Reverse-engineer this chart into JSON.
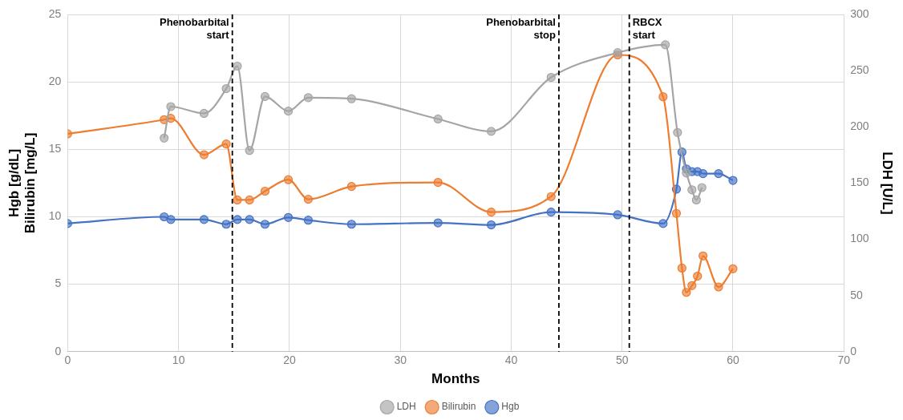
{
  "chart_data": {
    "type": "line",
    "xlabel": "Months",
    "ylabel": "Hgb [g/dL]\nBilirubin [mg/L]",
    "y2label": "LDH [U/L]",
    "xlim": [
      0,
      70
    ],
    "xticks": [
      0,
      10,
      20,
      30,
      40,
      50,
      60,
      70
    ],
    "ylim": [
      0,
      25
    ],
    "yticks": [
      0,
      5,
      10,
      15,
      20,
      25
    ],
    "y2lim": [
      0,
      300
    ],
    "y2ticks": [
      0,
      50,
      100,
      150,
      200,
      250,
      300
    ],
    "grid": true,
    "legend": "bottom",
    "marker": "circle",
    "line_style": "solid",
    "series": [
      {
        "name": "Hgb",
        "color": "#4472c4",
        "x": [
          0,
          8.7,
          9.3,
          12.3,
          14.3,
          15.3,
          16.4,
          17.8,
          19.9,
          21.7,
          25.6,
          33.4,
          38.2,
          43.6,
          49.6,
          53.7,
          54.9,
          55.4,
          55.8,
          56.3,
          56.8,
          57.3,
          58.7,
          60.0
        ],
        "values": [
          9.5,
          10.0,
          9.8,
          9.8,
          9.45,
          9.8,
          9.8,
          9.45,
          9.95,
          9.75,
          9.45,
          9.55,
          9.4,
          10.35,
          10.15,
          9.5,
          12.05,
          14.8,
          13.55,
          13.35,
          13.35,
          13.2,
          13.2,
          12.7
        ]
      },
      {
        "name": "Bilirubin",
        "color": "#ed7d31",
        "x": [
          0,
          8.7,
          9.3,
          12.3,
          14.3,
          15.3,
          16.4,
          17.8,
          19.9,
          21.7,
          25.6,
          33.4,
          38.2,
          43.6,
          49.6,
          53.7,
          54.9,
          55.4,
          55.8,
          56.3,
          56.8,
          57.3,
          58.7,
          60.0
        ],
        "values": [
          16.15,
          17.2,
          17.3,
          14.6,
          15.4,
          11.25,
          11.25,
          11.9,
          12.75,
          11.3,
          12.25,
          12.55,
          10.35,
          11.5,
          22.0,
          18.9,
          10.25,
          6.2,
          4.4,
          4.9,
          5.6,
          7.1,
          4.8,
          6.15
        ]
      },
      {
        "name": "LDH",
        "color": "#a5a5a5",
        "axis": "y2",
        "x": [
          8.7,
          9.3,
          12.3,
          14.3,
          15.3,
          16.4,
          17.8,
          19.9,
          21.7,
          25.6,
          33.4,
          38.2,
          43.6,
          49.6,
          53.9,
          55.0,
          55.8,
          56.3,
          56.7,
          57.2
        ],
        "values": [
          190,
          218,
          212,
          234,
          254,
          179,
          227,
          214,
          226,
          225,
          207,
          196,
          244,
          266,
          273,
          195,
          159,
          144,
          135,
          146
        ]
      }
    ],
    "ref_lines": [
      {
        "axis": "x",
        "value": 14.85,
        "label": "Phenobarbital\nstart",
        "color": "#000000",
        "line_style": "dashed"
      },
      {
        "axis": "x",
        "value": 44.3,
        "label": "Phenobarbital\nstop",
        "color": "#000000",
        "line_style": "dashed"
      },
      {
        "axis": "x",
        "value": 50.65,
        "label": "RBCX\nstart",
        "color": "#000000",
        "line_style": "dashed"
      }
    ]
  }
}
